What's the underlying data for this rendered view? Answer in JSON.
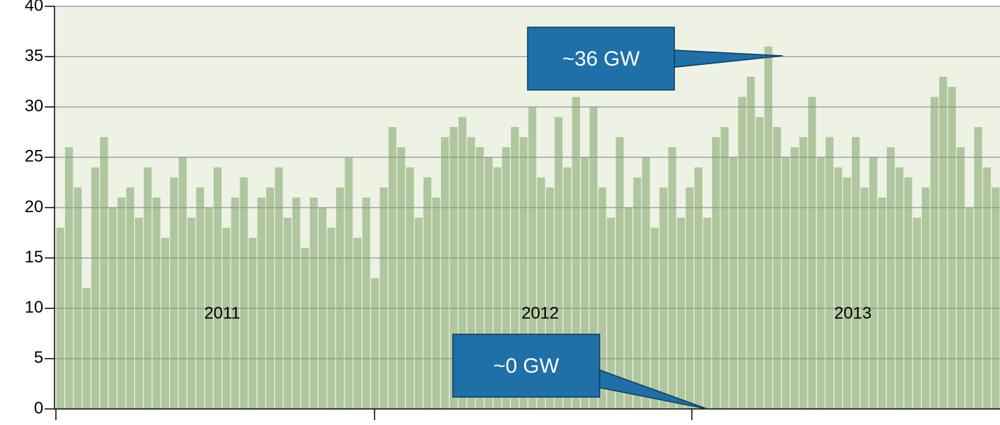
{
  "chart_data": {
    "type": "bar",
    "values": [
      18,
      26,
      22,
      12,
      24,
      27,
      20,
      21,
      22,
      19,
      24,
      21,
      17,
      23,
      25,
      19,
      22,
      20,
      24,
      18,
      21,
      23,
      17,
      21,
      22,
      24,
      19,
      21,
      16,
      21,
      20,
      18,
      22,
      25,
      17,
      21,
      13,
      22,
      28,
      26,
      24,
      19,
      23,
      21,
      27,
      28,
      29,
      27,
      26,
      25,
      24,
      26,
      28,
      27,
      30,
      23,
      22,
      29,
      24,
      31,
      25,
      30,
      22,
      19,
      27,
      20,
      23,
      25,
      18,
      22,
      26,
      19,
      22,
      24,
      19,
      27,
      28,
      25,
      31,
      33,
      29,
      36,
      28,
      25,
      26,
      27,
      31,
      25,
      27,
      24,
      23,
      27,
      22,
      25,
      21,
      26,
      24,
      23,
      19,
      22,
      31,
      33,
      32,
      26,
      20,
      28,
      24,
      22
    ],
    "color": "#7ea265",
    "year_labels": [
      "2011",
      "2012",
      "2013"
    ],
    "ylim": [
      0,
      40
    ],
    "yticks": [
      0,
      5,
      10,
      15,
      20,
      25,
      30,
      35,
      40
    ],
    "grid": true,
    "annotations": [
      "~36 GW",
      "~0 GW"
    ]
  }
}
